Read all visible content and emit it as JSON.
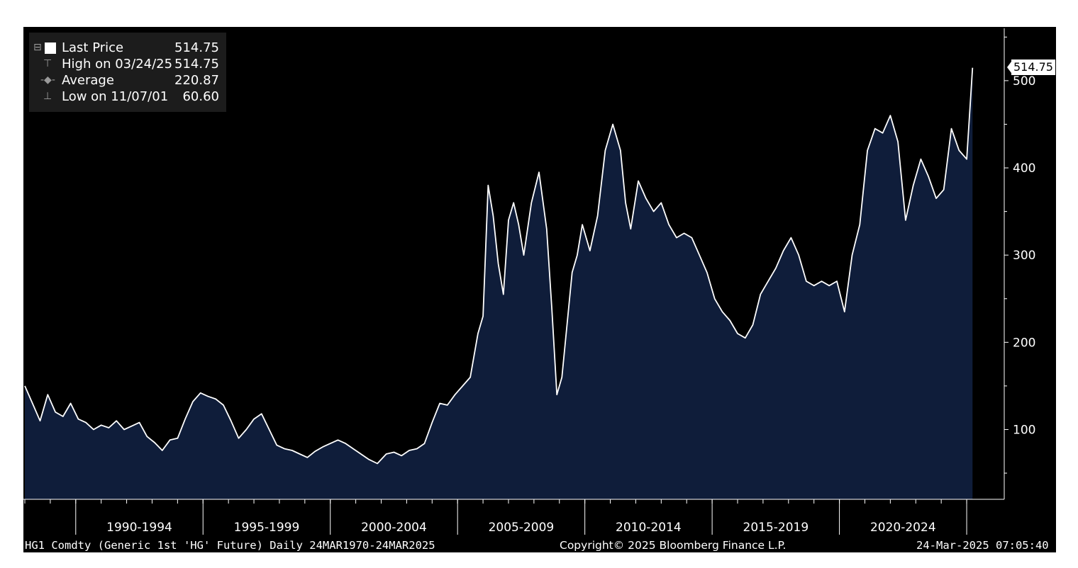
{
  "legend": {
    "last_label": "Last Price",
    "last_value": "514.75",
    "high_label": "High on 03/24/25",
    "high_value": "514.75",
    "avg_label": "Average",
    "avg_value": "220.87",
    "low_label": "Low on 11/07/01",
    "low_value": "60.60"
  },
  "price_tag": "514.75",
  "footer": {
    "left": "HG1 Comdty (Generic 1st 'HG' Future)  Daily 24MAR1970-24MAR2025",
    "center": "Copyright© 2025 Bloomberg Finance L.P.",
    "right": "24-Mar-2025 07:05:40"
  },
  "colors": {
    "background": "#000000",
    "area_fill": "#0f1d3a",
    "line": "#ffffff",
    "axis_text": "#ffffff"
  },
  "chart_data": {
    "type": "area",
    "title": "",
    "xlabel": "",
    "ylabel": "",
    "x_categories": [
      "1990-1994",
      "1995-1999",
      "2000-2004",
      "2005-2009",
      "2010-2014",
      "2015-2019",
      "2020-2024"
    ],
    "yticks": [
      100,
      200,
      300,
      400,
      500
    ],
    "ylim": [
      20,
      560
    ],
    "xlim": [
      1988.0,
      2025.5
    ],
    "y_axis_side": "right",
    "legend_position": "top-left",
    "grid": false,
    "series": [
      {
        "x": [
          1988.0,
          1988.3,
          1988.6,
          1988.9,
          1989.2,
          1989.5,
          1989.8,
          1990.1,
          1990.4,
          1990.7,
          1991.0,
          1991.3,
          1991.6,
          1991.9,
          1992.2,
          1992.5,
          1992.8,
          1993.1,
          1993.4,
          1993.7,
          1994.0,
          1994.3,
          1994.6,
          1994.9,
          1995.2,
          1995.5,
          1995.8,
          1996.1,
          1996.4,
          1996.7,
          1997.0,
          1997.3,
          1997.6,
          1997.9,
          1998.2,
          1998.5,
          1998.8,
          1999.1,
          1999.4,
          1999.7,
          2000.0,
          2000.3,
          2000.6,
          2000.9,
          2001.2,
          2001.5,
          2001.85,
          2002.2,
          2002.5,
          2002.8,
          2003.1,
          2003.4,
          2003.7,
          2004.0,
          2004.3,
          2004.6,
          2004.9,
          2005.2,
          2005.5,
          2005.8,
          2006.0,
          2006.2,
          2006.4,
          2006.6,
          2006.8,
          2007.0,
          2007.2,
          2007.4,
          2007.6,
          2007.9,
          2008.2,
          2008.5,
          2008.7,
          2008.9,
          2009.1,
          2009.3,
          2009.5,
          2009.7,
          2009.9,
          2010.2,
          2010.5,
          2010.8,
          2011.1,
          2011.4,
          2011.6,
          2011.8,
          2012.1,
          2012.4,
          2012.7,
          2013.0,
          2013.3,
          2013.6,
          2013.9,
          2014.2,
          2014.5,
          2014.8,
          2015.1,
          2015.4,
          2015.7,
          2016.0,
          2016.3,
          2016.6,
          2016.9,
          2017.2,
          2017.5,
          2017.8,
          2018.1,
          2018.4,
          2018.7,
          2019.0,
          2019.3,
          2019.6,
          2019.9,
          2020.2,
          2020.5,
          2020.8,
          2021.1,
          2021.4,
          2021.7,
          2022.0,
          2022.3,
          2022.6,
          2022.9,
          2023.2,
          2023.5,
          2023.8,
          2024.1,
          2024.4,
          2024.7,
          2025.0,
          2025.23
        ],
        "y": [
          150,
          130,
          110,
          140,
          120,
          115,
          130,
          112,
          108,
          100,
          105,
          102,
          110,
          100,
          104,
          108,
          92,
          85,
          76,
          88,
          90,
          112,
          132,
          142,
          138,
          135,
          128,
          110,
          90,
          100,
          112,
          118,
          100,
          82,
          78,
          76,
          72,
          68,
          75,
          80,
          84,
          88,
          84,
          78,
          72,
          66,
          61,
          72,
          74,
          70,
          76,
          78,
          84,
          108,
          130,
          128,
          140,
          150,
          160,
          210,
          230,
          380,
          345,
          290,
          255,
          340,
          360,
          335,
          300,
          360,
          395,
          330,
          240,
          140,
          160,
          220,
          280,
          300,
          335,
          305,
          345,
          420,
          450,
          420,
          360,
          330,
          385,
          365,
          350,
          360,
          335,
          320,
          325,
          320,
          300,
          280,
          250,
          235,
          225,
          210,
          205,
          220,
          255,
          270,
          285,
          305,
          320,
          300,
          270,
          265,
          270,
          265,
          270,
          235,
          300,
          335,
          420,
          445,
          440,
          460,
          430,
          340,
          380,
          410,
          390,
          365,
          375,
          445,
          420,
          410,
          514.75
        ]
      }
    ]
  }
}
